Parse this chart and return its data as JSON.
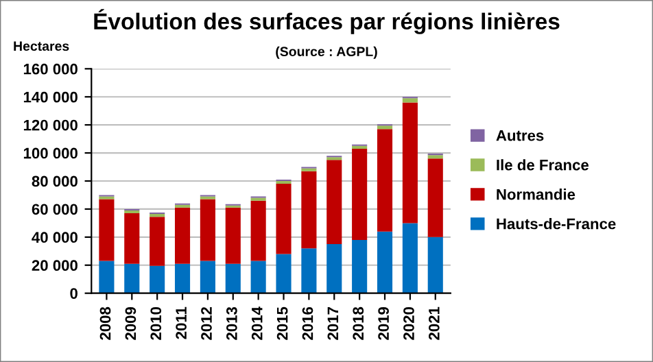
{
  "chart_data": {
    "type": "bar",
    "title": "Évolution des surfaces par régions linières",
    "subtitle": "(Source : AGPL)",
    "ylabel": "Hectares",
    "stacked": true,
    "grid": "y",
    "legend": "right",
    "categories": [
      "2008",
      "2009",
      "2010",
      "2011",
      "2012",
      "2013",
      "2014",
      "2015",
      "2016",
      "2017",
      "2018",
      "2019",
      "2020",
      "2021"
    ],
    "series": [
      {
        "name": "Hauts-de-France",
        "color": "#0070c0",
        "values": [
          23000,
          21000,
          19500,
          21000,
          23000,
          21000,
          23000,
          28000,
          32000,
          35000,
          38000,
          44000,
          50000,
          40000
        ]
      },
      {
        "name": "Normandie",
        "color": "#c00000",
        "values": [
          44000,
          36000,
          35000,
          40000,
          44000,
          40000,
          43000,
          50000,
          55000,
          60000,
          65000,
          73000,
          86000,
          56000
        ]
      },
      {
        "name": "Ile de France",
        "color": "#9bbb59",
        "values": [
          2000,
          2000,
          2000,
          2000,
          2000,
          1500,
          2000,
          2000,
          2000,
          2000,
          2000,
          2500,
          3000,
          2500
        ]
      },
      {
        "name": "Autres",
        "color": "#8064a2",
        "values": [
          1000,
          1000,
          1000,
          1000,
          1000,
          1000,
          1000,
          1000,
          1000,
          1000,
          1000,
          1000,
          1000,
          1000
        ]
      }
    ],
    "ylim": [
      0,
      160000
    ],
    "yticks": [
      {
        "value": 0,
        "label": "0"
      },
      {
        "value": 20000,
        "label": "20 000"
      },
      {
        "value": 40000,
        "label": "40 000"
      },
      {
        "value": 60000,
        "label": "60 000"
      },
      {
        "value": 80000,
        "label": "80 000"
      },
      {
        "value": 100000,
        "label": "100 000"
      },
      {
        "value": 120000,
        "label": "120 000"
      },
      {
        "value": 140000,
        "label": "140 000"
      },
      {
        "value": 160000,
        "label": "160 000"
      }
    ]
  }
}
